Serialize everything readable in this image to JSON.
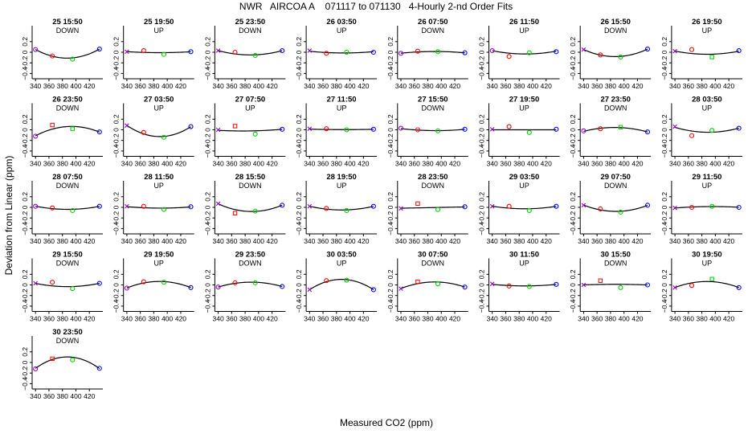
{
  "title": "NWR   AIRCOA A    071117 to 071130   4-Hourly 2-nd Order Fits",
  "xlabel": "Measured CO2 (ppm)",
  "ylabel": "Deviation from Linear (ppm)",
  "colors": {
    "p340": "#9900cc",
    "p365": "#ff0000",
    "p395": "#00cc00",
    "p435": "#0000ff",
    "curve": "#000000"
  },
  "chart_data": {
    "type": "scatter",
    "x_standards": [
      340,
      365,
      395,
      435
    ],
    "xlim": [
      335,
      440
    ],
    "ylim": [
      -0.5,
      0.5
    ],
    "xticks": [
      340,
      360,
      380,
      400,
      420
    ],
    "yticks": [
      0.2,
      0,
      -0.2,
      -0.4
    ],
    "panels": [
      {
        "title": "25 15:50",
        "dir": "DOWN",
        "y": [
          0.05,
          -0.07,
          -0.13,
          0.06
        ],
        "fit": [
          0.05,
          -0.07,
          -0.11,
          0.06
        ],
        "m": [
          "o",
          "o",
          "o",
          "o"
        ]
      },
      {
        "title": "25 19:50",
        "dir": "UP",
        "y": [
          0.01,
          0.03,
          -0.04,
          0.01
        ],
        "fit": [
          0.01,
          0,
          -0.01,
          0.01
        ],
        "m": [
          "x",
          "o",
          "o",
          "o"
        ]
      },
      {
        "title": "25 23:50",
        "dir": "DOWN",
        "y": [
          0.03,
          0,
          -0.06,
          0.03
        ],
        "fit": [
          0.03,
          -0.03,
          -0.05,
          0.03
        ],
        "m": [
          "x",
          "o",
          "o",
          "o"
        ]
      },
      {
        "title": "26 03:50",
        "dir": "UP",
        "y": [
          0.03,
          -0.02,
          0,
          0
        ],
        "fit": [
          0.02,
          -0.01,
          -0.01,
          0.01
        ],
        "m": [
          "x",
          "o",
          "o",
          "o"
        ]
      },
      {
        "title": "26 07:50",
        "dir": "DOWN",
        "y": [
          -0.02,
          0.02,
          0.01,
          -0.01
        ],
        "fit": [
          -0.02,
          0.01,
          0.01,
          -0.01
        ],
        "m": [
          "o",
          "o",
          "o",
          "o"
        ]
      },
      {
        "title": "26 11:50",
        "dir": "UP",
        "y": [
          0.03,
          -0.08,
          -0.01,
          0.01
        ],
        "fit": [
          0.03,
          -0.02,
          -0.03,
          0.02
        ],
        "m": [
          "o",
          "o",
          "o",
          "o"
        ]
      },
      {
        "title": "26 15:50",
        "dir": "DOWN",
        "y": [
          0.05,
          -0.05,
          -0.09,
          0.06
        ],
        "fit": [
          0.05,
          -0.05,
          -0.08,
          0.06
        ],
        "m": [
          "x",
          "o",
          "o",
          "o"
        ]
      },
      {
        "title": "26 19:50",
        "dir": "UP",
        "y": [
          0.02,
          0.05,
          -0.09,
          0.03
        ],
        "fit": [
          0.02,
          -0.02,
          -0.04,
          0.02
        ],
        "m": [
          "x",
          "o",
          "s",
          "o"
        ]
      },
      {
        "title": "26 23:50",
        "dir": "DOWN",
        "y": [
          -0.12,
          0.09,
          0.02,
          -0.04
        ],
        "fit": [
          -0.12,
          0.03,
          0.05,
          -0.04
        ],
        "m": [
          "o",
          "s",
          "s",
          "o"
        ]
      },
      {
        "title": "27 03:50",
        "dir": "UP",
        "y": [
          0.08,
          -0.05,
          -0.14,
          0.06
        ],
        "fit": [
          0.08,
          -0.07,
          -0.13,
          0.06
        ],
        "m": [
          "x",
          "o",
          "o",
          "o"
        ]
      },
      {
        "title": "27 07:50",
        "dir": "UP",
        "y": [
          0,
          0.07,
          -0.08,
          0.01
        ],
        "fit": [
          -0.01,
          -0.02,
          -0.02,
          0.01
        ],
        "m": [
          "x",
          "s",
          "o",
          "o"
        ]
      },
      {
        "title": "27 11:50",
        "dir": "UP",
        "y": [
          0.02,
          0.02,
          0,
          0.01
        ],
        "fit": [
          0.01,
          0.01,
          0,
          0.01
        ],
        "m": [
          "x",
          "o",
          "o",
          "o"
        ]
      },
      {
        "title": "27 15:50",
        "dir": "DOWN",
        "y": [
          0.03,
          0,
          -0.02,
          0.01
        ],
        "fit": [
          0.02,
          0,
          -0.02,
          0.01
        ],
        "m": [
          "o",
          "o",
          "o",
          "o"
        ]
      },
      {
        "title": "27 19:50",
        "dir": "UP",
        "y": [
          0.01,
          0.06,
          -0.05,
          0.01
        ],
        "fit": [
          0,
          0,
          0,
          0
        ],
        "m": [
          "x",
          "o",
          "o",
          "o"
        ]
      },
      {
        "title": "27 23:50",
        "dir": "DOWN",
        "y": [
          -0.02,
          0.02,
          0.05,
          -0.04
        ],
        "fit": [
          -0.03,
          0.03,
          0.04,
          -0.04
        ],
        "m": [
          "o",
          "o",
          "s",
          "o"
        ]
      },
      {
        "title": "28 03:50",
        "dir": "UP",
        "y": [
          0.06,
          -0.11,
          -0.01,
          0.03
        ],
        "fit": [
          0.05,
          -0.03,
          -0.04,
          0.03
        ],
        "m": [
          "x",
          "o",
          "o",
          "o"
        ]
      },
      {
        "title": "28 07:50",
        "dir": "DOWN",
        "y": [
          0.02,
          -0.01,
          -0.06,
          0.02
        ],
        "fit": [
          0.02,
          -0.02,
          -0.04,
          0.02
        ],
        "m": [
          "o",
          "o",
          "o",
          "o"
        ]
      },
      {
        "title": "28 11:50",
        "dir": "UP",
        "y": [
          0.02,
          0.02,
          -0.04,
          0.01
        ],
        "fit": [
          0.01,
          0,
          -0.02,
          0.01
        ],
        "m": [
          "x",
          "o",
          "o",
          "o"
        ]
      },
      {
        "title": "28 15:50",
        "dir": "DOWN",
        "y": [
          0.07,
          -0.11,
          -0.07,
          0.04
        ],
        "fit": [
          0.07,
          -0.05,
          -0.07,
          0.04
        ],
        "m": [
          "x",
          "s",
          "o",
          "o"
        ]
      },
      {
        "title": "28 19:50",
        "dir": "UP",
        "y": [
          0.02,
          -0.02,
          -0.06,
          0.02
        ],
        "fit": [
          0.02,
          -0.03,
          -0.05,
          0.02
        ],
        "m": [
          "x",
          "o",
          "o",
          "o"
        ]
      },
      {
        "title": "28 23:50",
        "dir": "DOWN",
        "y": [
          -0.02,
          0.07,
          -0.04,
          0.01
        ],
        "fit": [
          -0.02,
          0,
          -0.01,
          0.01
        ],
        "m": [
          "x",
          "s",
          "o",
          "o"
        ]
      },
      {
        "title": "29 03:50",
        "dir": "UP",
        "y": [
          0.02,
          0.02,
          -0.06,
          0.02
        ],
        "fit": [
          0.02,
          -0.01,
          -0.03,
          0.02
        ],
        "m": [
          "x",
          "o",
          "o",
          "o"
        ]
      },
      {
        "title": "29 07:50",
        "dir": "DOWN",
        "y": [
          0.04,
          -0.03,
          -0.09,
          0.04
        ],
        "fit": [
          0.04,
          -0.04,
          -0.08,
          0.04
        ],
        "m": [
          "x",
          "o",
          "o",
          "o"
        ]
      },
      {
        "title": "29 11:50",
        "dir": "UP",
        "y": [
          -0.01,
          0,
          0.02,
          0
        ],
        "fit": [
          -0.01,
          0,
          0.02,
          0
        ],
        "m": [
          "x",
          "o",
          "o",
          "o"
        ]
      },
      {
        "title": "29 15:50",
        "dir": "DOWN",
        "y": [
          0.03,
          0.05,
          -0.07,
          0.03
        ],
        "fit": [
          0.03,
          -0.02,
          -0.03,
          0.03
        ],
        "m": [
          "x",
          "o",
          "o",
          "o"
        ]
      },
      {
        "title": "29 19:50",
        "dir": "UP",
        "y": [
          -0.06,
          0.06,
          0.05,
          -0.05
        ],
        "fit": [
          -0.06,
          0.04,
          0.06,
          -0.05
        ],
        "m": [
          "o",
          "o",
          "o",
          "o"
        ]
      },
      {
        "title": "29 23:50",
        "dir": "DOWN",
        "y": [
          -0.04,
          0.04,
          0.04,
          -0.03
        ],
        "fit": [
          -0.04,
          0.03,
          0.05,
          -0.03
        ],
        "m": [
          "o",
          "o",
          "o",
          "o"
        ]
      },
      {
        "title": "30 03:50",
        "dir": "UP",
        "y": [
          -0.09,
          0.08,
          0.09,
          -0.09
        ],
        "fit": [
          -0.09,
          0.06,
          0.1,
          -0.09
        ],
        "m": [
          "x",
          "o",
          "o",
          "o"
        ]
      },
      {
        "title": "30 07:50",
        "dir": "DOWN",
        "y": [
          -0.07,
          0.06,
          0.02,
          -0.04
        ],
        "fit": [
          -0.07,
          0.03,
          0.05,
          -0.04
        ],
        "m": [
          "x",
          "s",
          "o",
          "o"
        ]
      },
      {
        "title": "30 11:50",
        "dir": "UP",
        "y": [
          0.02,
          -0.02,
          -0.03,
          0.01
        ],
        "fit": [
          0.01,
          -0.01,
          -0.02,
          0.01
        ],
        "m": [
          "x",
          "o",
          "o",
          "o"
        ]
      },
      {
        "title": "30 15:50",
        "dir": "DOWN",
        "y": [
          0,
          0.08,
          -0.05,
          0
        ],
        "fit": [
          0,
          0.01,
          0.01,
          0
        ],
        "m": [
          "x",
          "s",
          "o",
          "o"
        ]
      },
      {
        "title": "30 19:50",
        "dir": "UP",
        "y": [
          -0.05,
          -0.01,
          0.11,
          -0.05
        ],
        "fit": [
          -0.05,
          0.04,
          0.06,
          -0.05
        ],
        "m": [
          "x",
          "o",
          "s",
          "o"
        ]
      },
      {
        "title": "30 23:50",
        "dir": "DOWN",
        "y": [
          -0.12,
          0.07,
          0.05,
          -0.11
        ],
        "fit": [
          -0.12,
          0.08,
          0.08,
          -0.11
        ],
        "m": [
          "o",
          "s",
          "o",
          "o"
        ]
      }
    ]
  }
}
